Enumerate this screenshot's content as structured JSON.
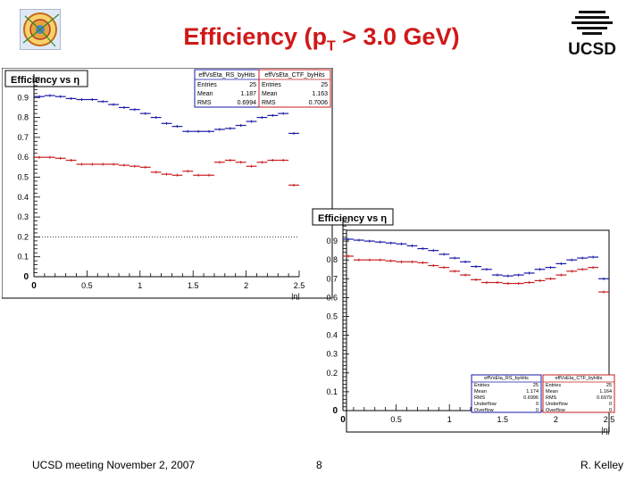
{
  "slide": {
    "title_main": "Efficiency (p",
    "title_sub": "T",
    "title_rest": " > 3.0 GeV)",
    "footer_left": "UCSD meeting November 2, 2007",
    "page_number": "8",
    "footer_right": "R. Kelley",
    "logo_right_text": "UCSD",
    "title_color": "#d01818"
  },
  "chart_data": [
    {
      "type": "scatter",
      "title": "Efficiency vs η",
      "xlabel": "|η|",
      "ylabel": "",
      "xlim": [
        0,
        2.5
      ],
      "ylim": [
        0,
        1
      ],
      "x_ticks": [
        "0",
        "0.5",
        "1",
        "1.5",
        "2",
        "2.5"
      ],
      "y_ticks": [
        "0",
        "0.1",
        "0.2",
        "0.3",
        "0.4",
        "0.5",
        "0.6",
        "0.7",
        "0.8",
        "0.9"
      ],
      "reference_line_y": 0.2,
      "series": [
        {
          "name": "effVsEta_RS_byHits",
          "color": "#1a1aa8",
          "x": [
            0.05,
            0.15,
            0.25,
            0.35,
            0.45,
            0.55,
            0.65,
            0.75,
            0.85,
            0.95,
            1.05,
            1.15,
            1.25,
            1.35,
            1.45,
            1.55,
            1.65,
            1.75,
            1.85,
            1.95,
            2.05,
            2.15,
            2.25,
            2.35,
            2.45
          ],
          "values": [
            0.905,
            0.91,
            0.905,
            0.895,
            0.89,
            0.89,
            0.88,
            0.865,
            0.85,
            0.84,
            0.82,
            0.8,
            0.77,
            0.755,
            0.73,
            0.73,
            0.73,
            0.74,
            0.745,
            0.76,
            0.78,
            0.8,
            0.81,
            0.82,
            0.72
          ]
        },
        {
          "name": "effVsEta_CTF_byHits",
          "color": "#c81e1e",
          "x": [
            0.05,
            0.15,
            0.25,
            0.35,
            0.45,
            0.55,
            0.65,
            0.75,
            0.85,
            0.95,
            1.05,
            1.15,
            1.25,
            1.35,
            1.45,
            1.55,
            1.65,
            1.75,
            1.85,
            1.95,
            2.05,
            2.15,
            2.25,
            2.35,
            2.45
          ],
          "values": [
            0.6,
            0.6,
            0.595,
            0.585,
            0.565,
            0.565,
            0.565,
            0.565,
            0.56,
            0.555,
            0.55,
            0.525,
            0.515,
            0.51,
            0.53,
            0.51,
            0.51,
            0.575,
            0.585,
            0.575,
            0.555,
            0.575,
            0.585,
            0.585,
            0.46
          ]
        }
      ],
      "stats": [
        {
          "name": "effVsEta_RS_byHits",
          "color": "#1a1aa8",
          "rows": [
            {
              "label": "Entries",
              "value": "25"
            },
            {
              "label": "Mean",
              "value": "1.187"
            },
            {
              "label": "RMS",
              "value": "0.6994"
            }
          ]
        },
        {
          "name": "effVsEta_CTF_byHits",
          "color": "#c81e1e",
          "rows": [
            {
              "label": "Entries",
              "value": "25"
            },
            {
              "label": "Mean",
              "value": "1.163"
            },
            {
              "label": "RMS",
              "value": "0.7006"
            }
          ]
        }
      ]
    },
    {
      "type": "scatter",
      "title": "Efficiency vs η",
      "xlabel": "|η|",
      "ylabel": "",
      "xlim": [
        0,
        2.5
      ],
      "ylim": [
        0,
        1
      ],
      "x_ticks": [
        "0",
        "0.5",
        "1",
        "1.5",
        "2",
        "2.5"
      ],
      "y_ticks": [
        "0",
        "0.1",
        "0.2",
        "0.3",
        "0.4",
        "0.5",
        "0.6",
        "0.7",
        "0.8",
        "0.9"
      ],
      "series": [
        {
          "name": "effVsEta_RS_byHits",
          "color": "#1a1aa8",
          "x": [
            0.05,
            0.15,
            0.25,
            0.35,
            0.45,
            0.55,
            0.65,
            0.75,
            0.85,
            0.95,
            1.05,
            1.15,
            1.25,
            1.35,
            1.45,
            1.55,
            1.65,
            1.75,
            1.85,
            1.95,
            2.05,
            2.15,
            2.25,
            2.35,
            2.45
          ],
          "values": [
            0.91,
            0.905,
            0.9,
            0.895,
            0.89,
            0.885,
            0.875,
            0.86,
            0.85,
            0.83,
            0.81,
            0.79,
            0.765,
            0.75,
            0.72,
            0.715,
            0.72,
            0.73,
            0.75,
            0.76,
            0.78,
            0.8,
            0.81,
            0.815,
            0.7
          ]
        },
        {
          "name": "effVsEta_CTF_byHits",
          "color": "#c81e1e",
          "x": [
            0.05,
            0.15,
            0.25,
            0.35,
            0.45,
            0.55,
            0.65,
            0.75,
            0.85,
            0.95,
            1.05,
            1.15,
            1.25,
            1.35,
            1.45,
            1.55,
            1.65,
            1.75,
            1.85,
            1.95,
            2.05,
            2.15,
            2.25,
            2.35,
            2.45
          ],
          "values": [
            0.82,
            0.8,
            0.8,
            0.8,
            0.795,
            0.79,
            0.79,
            0.785,
            0.77,
            0.76,
            0.74,
            0.72,
            0.695,
            0.68,
            0.68,
            0.675,
            0.675,
            0.68,
            0.69,
            0.7,
            0.72,
            0.74,
            0.75,
            0.76,
            0.63
          ]
        }
      ],
      "stats": [
        {
          "name": "effVsEta_RS_byHits",
          "color": "#1a1aa8",
          "rows": [
            {
              "label": "Entries",
              "value": "25"
            },
            {
              "label": "Mean",
              "value": "1.174"
            },
            {
              "label": "RMS",
              "value": "0.6996"
            },
            {
              "label": "Underflow",
              "value": "0"
            },
            {
              "label": "Overflow",
              "value": "0"
            }
          ]
        },
        {
          "name": "effVsEta_CTF_byHits",
          "color": "#c81e1e",
          "rows": [
            {
              "label": "Entries",
              "value": "25"
            },
            {
              "label": "Mean",
              "value": "1.164"
            },
            {
              "label": "RMS",
              "value": "0.6979"
            },
            {
              "label": "Underflow",
              "value": "0"
            },
            {
              "label": "Overflow",
              "value": "0"
            }
          ]
        }
      ]
    }
  ]
}
